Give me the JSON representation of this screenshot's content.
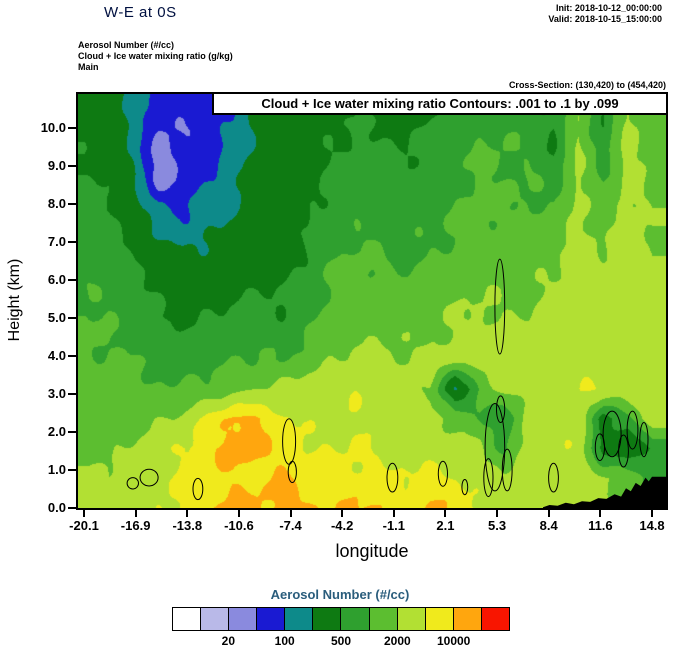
{
  "header": {
    "title": "W-E at 0S",
    "init_label": "Init: 2018-10-12_00:00:00",
    "valid_label": "Valid: 2018-10-15_15:00:00",
    "field_lines": [
      "Aerosol Number  (#/cc)",
      "Cloud + Ice water mixing ratio   (g/kg)",
      "Main"
    ],
    "cross_section": "Cross-Section: (130,420) to (454,420)"
  },
  "plot": {
    "contour_note": "Cloud + Ice water mixing ratio Contours: .001 to .1 by .099",
    "xlabel": "longitude",
    "ylabel": "Height (km)"
  },
  "colorbar": {
    "title": "Aerosol Number  (#/cc)",
    "labels": [
      "20",
      "100",
      "500",
      "2000",
      "10000"
    ],
    "label_boundaries": [
      2,
      4,
      6,
      8,
      10
    ],
    "colors": [
      "#ffffff",
      "#b9b9e8",
      "#8a8ade",
      "#1a1ad2",
      "#0d8a8a",
      "#0e7a12",
      "#2fa02f",
      "#5cbe30",
      "#b2e033",
      "#f0ea1c",
      "#ffa60e",
      "#f81500"
    ]
  },
  "chart_data": {
    "type": "heatmap",
    "title": "Cloud + Ice water mixing ratio Contours: .001 to .1 by .099",
    "xlabel": "longitude",
    "ylabel": "Height (km)",
    "legend_title": "Aerosol Number (#/cc)",
    "x_ticks": [
      -20.1,
      -16.9,
      -13.8,
      -10.6,
      -7.4,
      -4.2,
      -1.1,
      2.1,
      5.3,
      8.4,
      11.6,
      14.8
    ],
    "x_tick_labels": [
      "-20.1",
      "-16.9",
      "-13.8",
      "-10.6",
      "-7.4",
      "-4.2",
      "-1.1",
      "2.1",
      "5.3",
      "8.4",
      "11.6",
      "14.8"
    ],
    "y_ticks": [
      0,
      1,
      2,
      3,
      4,
      5,
      6,
      7,
      8,
      9,
      10
    ],
    "y_tick_labels": [
      "0.0",
      "1.0",
      "2.0",
      "3.0",
      "4.0",
      "5.0",
      "6.0",
      "7.0",
      "8.0",
      "9.0",
      "10.0"
    ],
    "x_range": [
      -20.1,
      14.8
    ],
    "y_range_km": [
      0,
      11
    ],
    "levels": [
      10,
      20,
      50,
      100,
      200,
      500,
      1000,
      2000,
      5000,
      10000,
      20000
    ],
    "colors": [
      "#ffffff",
      "#b9b9e8",
      "#8a8ade",
      "#1a1ad2",
      "#0d8a8a",
      "#0e7a12",
      "#2fa02f",
      "#5cbe30",
      "#b2e033",
      "#f0ea1c",
      "#ffa60e",
      "#f81500"
    ],
    "contour_overlay": {
      "field": "Cloud + Ice water mixing ratio (g/kg)",
      "from": 0.001,
      "to": 0.1,
      "by": 0.099
    },
    "values": [
      [
        350,
        300,
        180,
        70,
        55,
        60,
        120,
        250,
        300,
        250,
        300,
        350,
        300,
        280,
        350,
        600,
        700,
        800,
        700,
        400,
        1800,
        400,
        2500,
        1200
      ],
      [
        400,
        350,
        150,
        60,
        55,
        65,
        110,
        220,
        300,
        300,
        400,
        500,
        450,
        400,
        500,
        700,
        900,
        900,
        800,
        450,
        2000,
        500,
        2500,
        1400
      ],
      [
        450,
        400,
        160,
        35,
        55,
        70,
        130,
        250,
        300,
        350,
        500,
        600,
        550,
        500,
        600,
        800,
        1000,
        1000,
        900,
        500,
        2200,
        700,
        2600,
        1500
      ],
      [
        500,
        450,
        200,
        35,
        60,
        90,
        150,
        300,
        320,
        400,
        600,
        700,
        650,
        600,
        700,
        900,
        1100,
        1000,
        1000,
        700,
        2400,
        900,
        2600,
        1600
      ],
      [
        600,
        500,
        300,
        120,
        90,
        130,
        180,
        350,
        340,
        450,
        700,
        800,
        750,
        700,
        800,
        1000,
        1200,
        1100,
        1100,
        1000,
        2600,
        1300,
        2800,
        1800
      ],
      [
        700,
        600,
        400,
        200,
        160,
        200,
        250,
        400,
        380,
        500,
        800,
        1000,
        900,
        800,
        900,
        1100,
        1300,
        1200,
        1200,
        1400,
        2800,
        1800,
        3000,
        2000
      ],
      [
        800,
        700,
        500,
        350,
        300,
        300,
        350,
        450,
        420,
        600,
        1000,
        1200,
        1100,
        1000,
        1100,
        1400,
        1600,
        1500,
        1500,
        1900,
        3000,
        2400,
        3200,
        2200
      ],
      [
        1000,
        900,
        700,
        500,
        400,
        450,
        500,
        550,
        500,
        700,
        1200,
        1400,
        1300,
        1300,
        1400,
        1800,
        2000,
        1800,
        1800,
        2600,
        3400,
        3000,
        3400,
        2400
      ],
      [
        1100,
        1000,
        800,
        600,
        500,
        550,
        600,
        700,
        650,
        900,
        1400,
        1700,
        1600,
        1600,
        1800,
        2200,
        2400,
        2200,
        2200,
        3200,
        3800,
        3600,
        3600,
        2600
      ],
      [
        1200,
        1100,
        1000,
        800,
        700,
        800,
        900,
        1000,
        1000,
        1300,
        1800,
        2200,
        2200,
        2200,
        2400,
        2800,
        3000,
        2800,
        2800,
        3600,
        4200,
        4000,
        4000,
        2800
      ],
      [
        1300,
        1300,
        1200,
        1100,
        1000,
        1200,
        1500,
        2000,
        2400,
        2800,
        3200,
        5200,
        3400,
        3000,
        2000,
        180,
        1000,
        2600,
        3000,
        4200,
        4600,
        4400,
        4200,
        3000
      ],
      [
        1400,
        1500,
        1600,
        2000,
        2600,
        6000,
        12000,
        11000,
        6000,
        4000,
        4000,
        4400,
        4000,
        3400,
        2600,
        1600,
        1200,
        450,
        2800,
        4400,
        4800,
        300,
        800,
        3200
      ],
      [
        1500,
        1700,
        2200,
        3400,
        5500,
        9000,
        13000,
        12000,
        7000,
        5200,
        4800,
        5200,
        4600,
        3800,
        3200,
        2600,
        2200,
        900,
        3200,
        4600,
        3600,
        400,
        250,
        600
      ],
      [
        2600,
        2200,
        2800,
        4200,
        5200,
        7000,
        9000,
        8000,
        11000,
        7000,
        6000,
        6500,
        6000,
        5000,
        6500,
        5500,
        3600,
        2400,
        3000,
        3600,
        2800,
        2200,
        1600,
        800
      ],
      [
        3000,
        2600,
        3400,
        5000,
        6000,
        9000,
        12000,
        11000,
        12000,
        11000,
        9000,
        11000,
        12000,
        8000,
        11000,
        9000,
        5000,
        3200,
        4000,
        4200,
        3000,
        2400,
        1800,
        1000
      ]
    ],
    "terrain_profile": [
      [
        8.1,
        0.02
      ],
      [
        8.5,
        0.08
      ],
      [
        9.0,
        0.06
      ],
      [
        9.5,
        0.14
      ],
      [
        10.0,
        0.1
      ],
      [
        10.5,
        0.18
      ],
      [
        11.0,
        0.16
      ],
      [
        11.5,
        0.26
      ],
      [
        12.0,
        0.24
      ],
      [
        12.5,
        0.36
      ],
      [
        12.9,
        0.3
      ],
      [
        13.2,
        0.52
      ],
      [
        13.5,
        0.44
      ],
      [
        13.8,
        0.66
      ],
      [
        14.1,
        0.58
      ],
      [
        14.4,
        0.8
      ],
      [
        14.6,
        0.7
      ],
      [
        14.8,
        0.82
      ]
    ],
    "cloud_contours": [
      {
        "x": -17.1,
        "y": 0.65,
        "rx": 0.35,
        "ry": 0.15
      },
      {
        "x": -16.1,
        "y": 0.8,
        "rx": 0.55,
        "ry": 0.22
      },
      {
        "x": -13.1,
        "y": 0.5,
        "rx": 0.3,
        "ry": 0.28
      },
      {
        "x": -7.5,
        "y": 1.75,
        "rx": 0.4,
        "ry": 0.6
      },
      {
        "x": -7.3,
        "y": 0.95,
        "rx": 0.25,
        "ry": 0.28
      },
      {
        "x": -1.15,
        "y": 0.8,
        "rx": 0.33,
        "ry": 0.38
      },
      {
        "x": 1.95,
        "y": 0.9,
        "rx": 0.28,
        "ry": 0.33
      },
      {
        "x": 3.3,
        "y": 0.55,
        "rx": 0.18,
        "ry": 0.2
      },
      {
        "x": 5.45,
        "y": 5.3,
        "rx": 0.3,
        "ry": 1.25
      },
      {
        "x": 5.15,
        "y": 1.6,
        "rx": 0.6,
        "ry": 1.15
      },
      {
        "x": 5.9,
        "y": 1.0,
        "rx": 0.3,
        "ry": 0.55
      },
      {
        "x": 4.75,
        "y": 0.8,
        "rx": 0.28,
        "ry": 0.5
      },
      {
        "x": 5.5,
        "y": 2.6,
        "rx": 0.25,
        "ry": 0.35
      },
      {
        "x": 8.75,
        "y": 0.8,
        "rx": 0.3,
        "ry": 0.38
      },
      {
        "x": 11.6,
        "y": 1.6,
        "rx": 0.28,
        "ry": 0.35
      },
      {
        "x": 12.35,
        "y": 1.95,
        "rx": 0.55,
        "ry": 0.6
      },
      {
        "x": 13.05,
        "y": 1.5,
        "rx": 0.3,
        "ry": 0.42
      },
      {
        "x": 13.6,
        "y": 2.05,
        "rx": 0.33,
        "ry": 0.5
      },
      {
        "x": 14.3,
        "y": 1.8,
        "rx": 0.25,
        "ry": 0.45
      }
    ]
  }
}
